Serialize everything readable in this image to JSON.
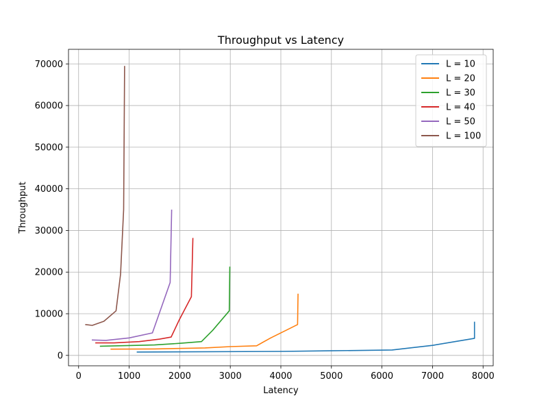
{
  "chart_data": {
    "type": "line",
    "title": "Throughput vs Latency",
    "xlabel": "Latency",
    "ylabel": "Throughput",
    "xlim": [
      -200,
      8200
    ],
    "ylim": [
      -2500,
      73500
    ],
    "xticks": [
      0,
      1000,
      2000,
      3000,
      4000,
      5000,
      6000,
      7000,
      8000
    ],
    "yticks": [
      0,
      10000,
      20000,
      30000,
      40000,
      50000,
      60000,
      70000
    ],
    "grid": true,
    "legend_position": "top-right",
    "series": [
      {
        "name": "L = 10",
        "color": "#1f77b4",
        "points": [
          [
            1150,
            800
          ],
          [
            4000,
            950
          ],
          [
            5000,
            1100
          ],
          [
            6200,
            1300
          ],
          [
            7000,
            2400
          ],
          [
            7830,
            4100
          ],
          [
            7830,
            8100
          ]
        ]
      },
      {
        "name": "L = 20",
        "color": "#ff7f0e",
        "points": [
          [
            630,
            1500
          ],
          [
            1500,
            1550
          ],
          [
            2500,
            1800
          ],
          [
            3000,
            2100
          ],
          [
            3520,
            2300
          ],
          [
            3800,
            4200
          ],
          [
            4100,
            6000
          ],
          [
            4330,
            7400
          ],
          [
            4340,
            14800
          ]
        ]
      },
      {
        "name": "L = 30",
        "color": "#2ca02c",
        "points": [
          [
            420,
            2200
          ],
          [
            1500,
            2500
          ],
          [
            2000,
            2900
          ],
          [
            2430,
            3300
          ],
          [
            2650,
            6000
          ],
          [
            2980,
            10700
          ],
          [
            2990,
            21300
          ]
        ]
      },
      {
        "name": "L = 40",
        "color": "#d62728",
        "points": [
          [
            330,
            3000
          ],
          [
            700,
            3000
          ],
          [
            1200,
            3300
          ],
          [
            1600,
            3900
          ],
          [
            1830,
            4400
          ],
          [
            1990,
            8500
          ],
          [
            2230,
            14100
          ],
          [
            2260,
            28200
          ]
        ]
      },
      {
        "name": "L = 50",
        "color": "#9467bd",
        "points": [
          [
            260,
            3700
          ],
          [
            540,
            3600
          ],
          [
            1000,
            4200
          ],
          [
            1460,
            5400
          ],
          [
            1810,
            17500
          ],
          [
            1840,
            35000
          ]
        ]
      },
      {
        "name": "L = 100",
        "color": "#8c564b",
        "points": [
          [
            130,
            7400
          ],
          [
            270,
            7200
          ],
          [
            500,
            8200
          ],
          [
            740,
            10700
          ],
          [
            830,
            19500
          ],
          [
            890,
            35000
          ],
          [
            910,
            69500
          ]
        ]
      }
    ]
  }
}
